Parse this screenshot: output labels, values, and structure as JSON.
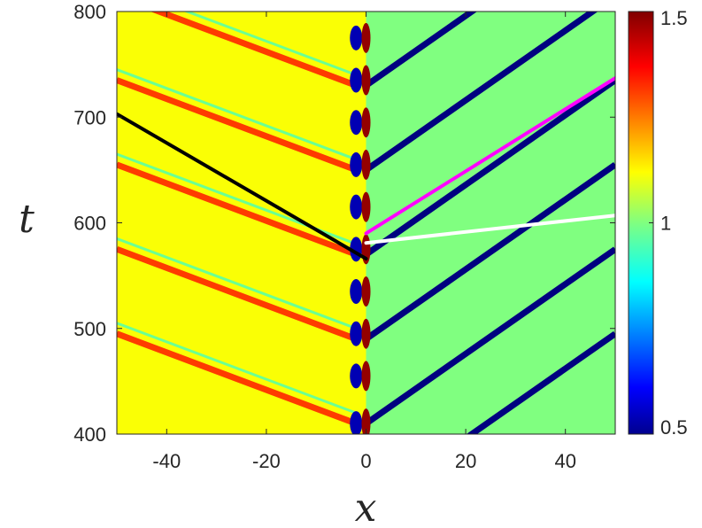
{
  "chart_data": {
    "type": "heatmap",
    "title": "",
    "xlabel": "x",
    "ylabel": "t",
    "xlim": [
      -50,
      50
    ],
    "ylim": [
      400,
      800
    ],
    "xticks": [
      -40,
      -20,
      0,
      20,
      40
    ],
    "yticks": [
      400,
      500,
      600,
      700,
      800
    ],
    "colorbar": {
      "colormap": "jet",
      "range": [
        0.5,
        1.5
      ],
      "ticks": [
        0.5,
        1,
        1.5
      ],
      "tick_labels": [
        "0.5",
        "1",
        "1.5"
      ]
    },
    "background_value": 1.0,
    "left_region_value": 1.12,
    "right_diagonals": {
      "value": 0.5,
      "slope_dt_dx": 3.3,
      "start_times": [
        330,
        410,
        490,
        570,
        650,
        730
      ]
    },
    "left_diagonals": {
      "value": 1.35,
      "slope_dt_dx": -1.7,
      "start_times": [
        420,
        500,
        580,
        660,
        740
      ]
    },
    "core_blobs_x": 0,
    "core_blob_times": [
      410,
      455,
      495,
      535,
      575,
      615,
      655,
      695,
      735,
      775
    ],
    "overlay_lines": [
      {
        "color": "#000000",
        "points": [
          [
            -50,
            703
          ],
          [
            0,
            566
          ]
        ]
      },
      {
        "color": "#ff00ff",
        "points": [
          [
            0,
            590
          ],
          [
            50,
            737
          ]
        ]
      },
      {
        "color": "#ffffff",
        "points": [
          [
            0,
            581
          ],
          [
            50,
            607
          ]
        ]
      }
    ]
  }
}
